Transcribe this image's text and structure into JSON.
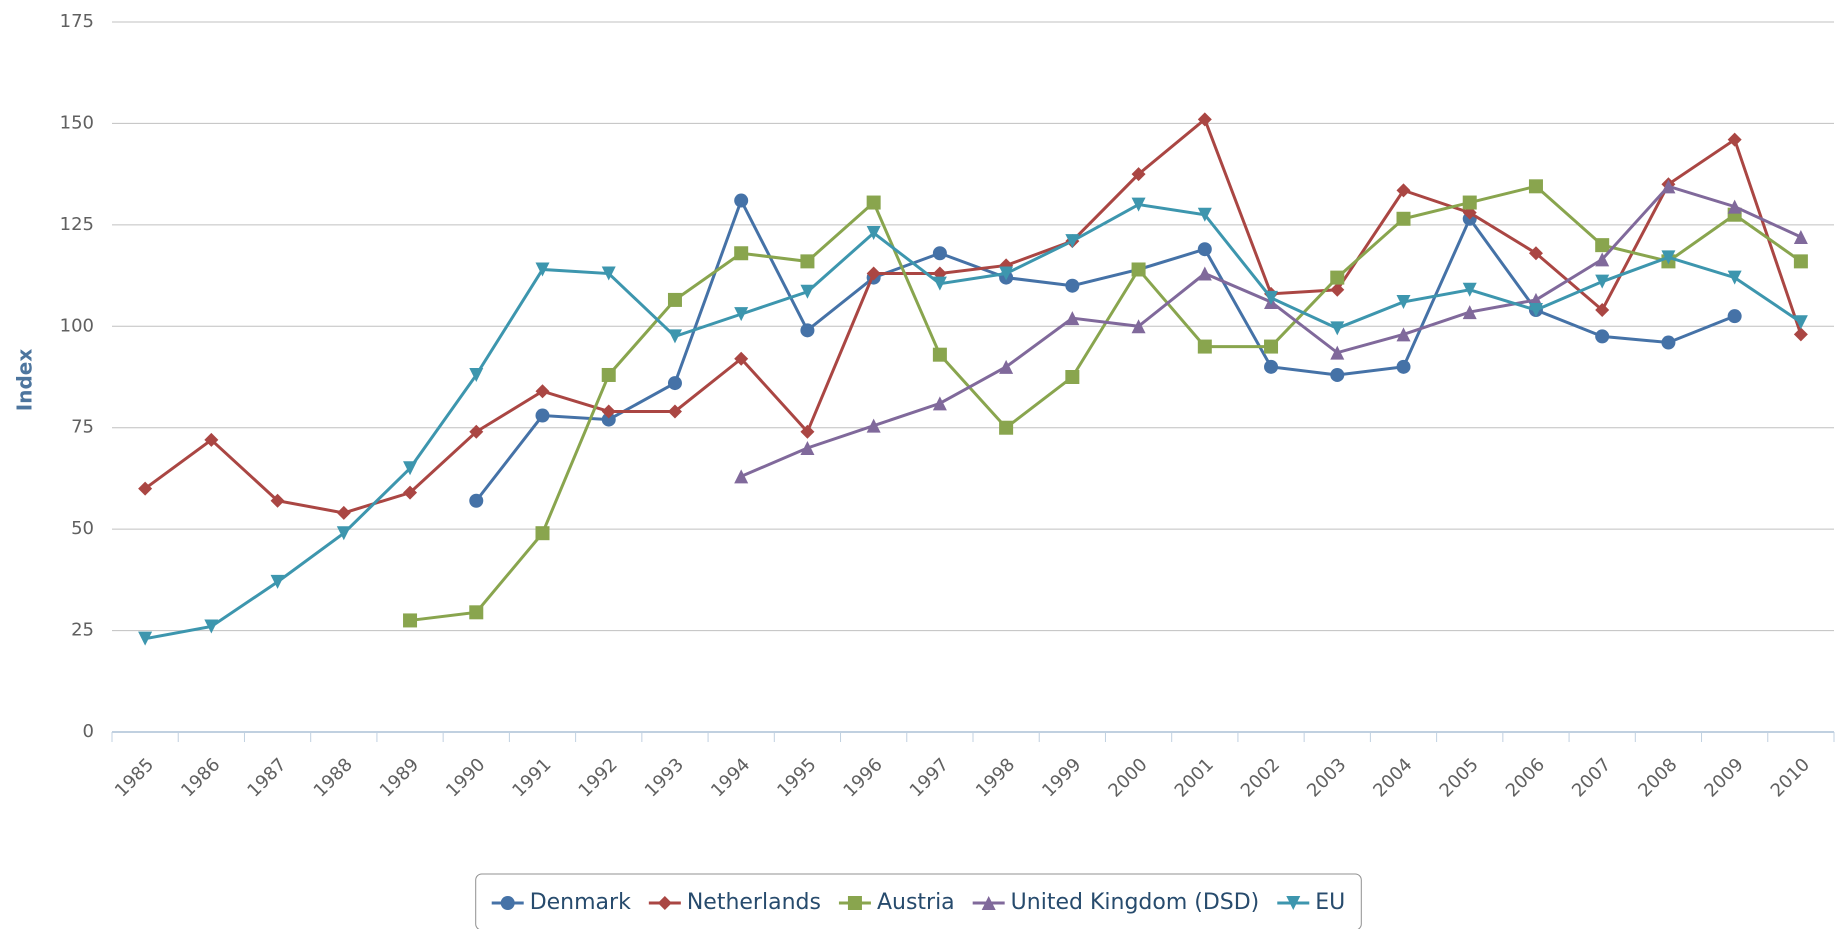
{
  "chart_data": {
    "type": "line",
    "y_label": "Index",
    "categories": [
      "1985",
      "1986",
      "1987",
      "1988",
      "1989",
      "1990",
      "1991",
      "1992",
      "1993",
      "1994",
      "1995",
      "1996",
      "1997",
      "1998",
      "1999",
      "2000",
      "2001",
      "2002",
      "2003",
      "2004",
      "2005",
      "2006",
      "2007",
      "2008",
      "2009",
      "2010"
    ],
    "series": [
      {
        "name": "Denmark",
        "color": "#4572A7",
        "marker": "circle",
        "values": [
          null,
          null,
          null,
          null,
          null,
          57,
          78,
          77,
          86,
          131,
          99,
          112,
          118,
          112,
          110,
          114,
          119,
          90,
          88,
          90,
          126.5,
          104,
          97.5,
          96,
          102.5,
          null
        ]
      },
      {
        "name": "Netherlands",
        "color": "#AA4643",
        "marker": "diamond",
        "values": [
          60,
          72,
          57,
          54,
          59,
          74,
          84,
          79,
          79,
          92,
          74,
          113,
          113,
          115,
          121,
          137.5,
          151,
          108,
          109,
          133.5,
          128,
          118,
          104,
          135,
          146,
          98
        ]
      },
      {
        "name": "Austria",
        "color": "#89A54E",
        "marker": "square",
        "values": [
          null,
          null,
          null,
          null,
          27.5,
          29.5,
          49,
          88,
          106.5,
          118,
          116,
          130.5,
          93,
          75,
          87.5,
          114,
          95,
          95,
          112,
          126.5,
          130.5,
          134.5,
          120,
          116,
          127.5,
          116
        ]
      },
      {
        "name": "United Kingdom (DSD)",
        "color": "#80699B",
        "marker": "triangle",
        "values": [
          null,
          null,
          null,
          null,
          null,
          null,
          null,
          null,
          null,
          63,
          70,
          75.5,
          81,
          90,
          102,
          100,
          113,
          106,
          93.5,
          98,
          103.5,
          106.5,
          116.5,
          134.5,
          129.5,
          122
        ]
      },
      {
        "name": "EU",
        "color": "#3D96AE",
        "marker": "triangle-down",
        "values": [
          23,
          26,
          37,
          49,
          65,
          88,
          114,
          113,
          97.5,
          103,
          108.5,
          123,
          110.5,
          113,
          121,
          130,
          127.5,
          107,
          99.5,
          106,
          109,
          104,
          111,
          117,
          112,
          101
        ]
      }
    ],
    "ylim": [
      0,
      175
    ],
    "yticks": [
      0,
      25,
      50,
      75,
      100,
      125,
      150,
      175
    ],
    "grid": true,
    "legend": "bottom"
  }
}
